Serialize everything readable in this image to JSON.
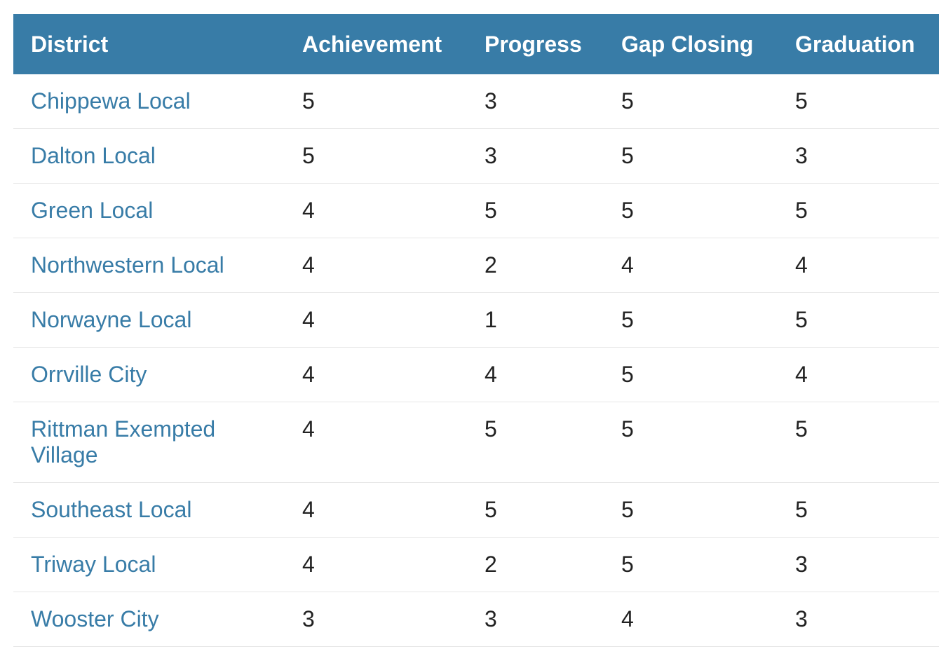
{
  "table": {
    "headers": [
      "District",
      "Achievement",
      "Progress",
      "Gap Closing",
      "Graduation"
    ],
    "rows": [
      {
        "district": "Chippewa Local",
        "achievement": "5",
        "progress": "3",
        "gap_closing": "5",
        "graduation": "5"
      },
      {
        "district": "Dalton Local",
        "achievement": "5",
        "progress": "3",
        "gap_closing": "5",
        "graduation": "3"
      },
      {
        "district": "Green Local",
        "achievement": "4",
        "progress": "5",
        "gap_closing": "5",
        "graduation": "5"
      },
      {
        "district": "Northwestern Local",
        "achievement": "4",
        "progress": "2",
        "gap_closing": "4",
        "graduation": "4"
      },
      {
        "district": "Norwayne Local",
        "achievement": "4",
        "progress": "1",
        "gap_closing": "5",
        "graduation": "5"
      },
      {
        "district": "Orrville City",
        "achievement": "4",
        "progress": "4",
        "gap_closing": "5",
        "graduation": "4"
      },
      {
        "district": "Rittman Exempted Village",
        "achievement": "4",
        "progress": "5",
        "gap_closing": "5",
        "graduation": "5"
      },
      {
        "district": "Southeast Local",
        "achievement": "4",
        "progress": "5",
        "gap_closing": "5",
        "graduation": "5"
      },
      {
        "district": "Triway Local",
        "achievement": "4",
        "progress": "2",
        "gap_closing": "5",
        "graduation": "3"
      },
      {
        "district": "Wooster City",
        "achievement": "3",
        "progress": "3",
        "gap_closing": "4",
        "graduation": "3"
      }
    ]
  },
  "colors": {
    "header_background": "#387ca7",
    "header_text": "#ffffff",
    "link_text": "#387ca7",
    "body_text": "#222222",
    "row_divider": "#e6e6e6"
  }
}
